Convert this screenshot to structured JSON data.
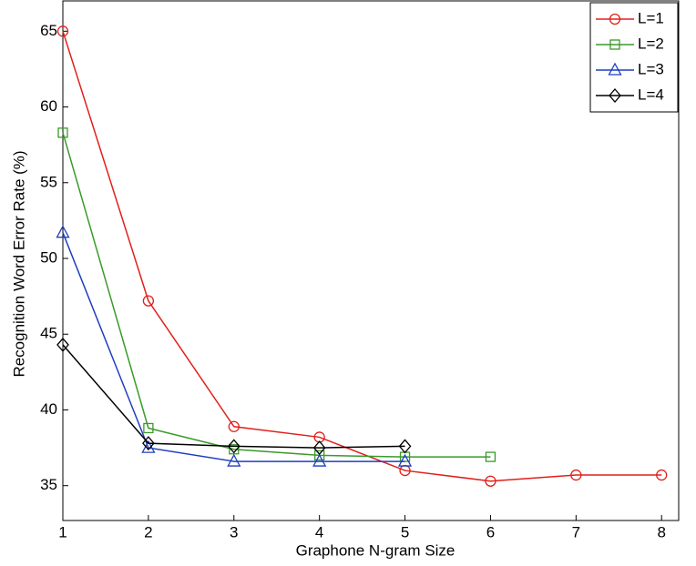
{
  "chart_data": {
    "type": "line",
    "xlabel": "Graphone N-gram Size",
    "ylabel": "Recognition Word Error Rate (%)",
    "x": [
      1,
      2,
      3,
      4,
      5,
      6,
      7,
      8
    ],
    "xlim": [
      1,
      8.2
    ],
    "xticks": [
      1,
      2,
      3,
      4,
      5,
      6,
      7,
      8
    ],
    "ylim": [
      32.7,
      67
    ],
    "yticks": [
      35,
      40,
      45,
      50,
      55,
      60,
      65
    ],
    "legend": "upper right",
    "series": [
      {
        "name": "L=1",
        "color": "#e0201b",
        "marker": "circle",
        "values": [
          65,
          47.2,
          38.9,
          38.2,
          36.0,
          35.3,
          35.7,
          35.7
        ]
      },
      {
        "name": "L=2",
        "color": "#3a9a2a",
        "marker": "square",
        "values": [
          58.3,
          38.8,
          37.4,
          37.0,
          36.9,
          36.9,
          null,
          null
        ]
      },
      {
        "name": "L=3",
        "color": "#1f3fbf",
        "marker": "triangle",
        "values": [
          51.7,
          37.5,
          36.6,
          36.6,
          36.6,
          null,
          null,
          null
        ]
      },
      {
        "name": "L=4",
        "color": "#000000",
        "marker": "diamond",
        "values": [
          44.3,
          37.8,
          37.6,
          37.5,
          37.6,
          null,
          null,
          null
        ]
      }
    ]
  }
}
